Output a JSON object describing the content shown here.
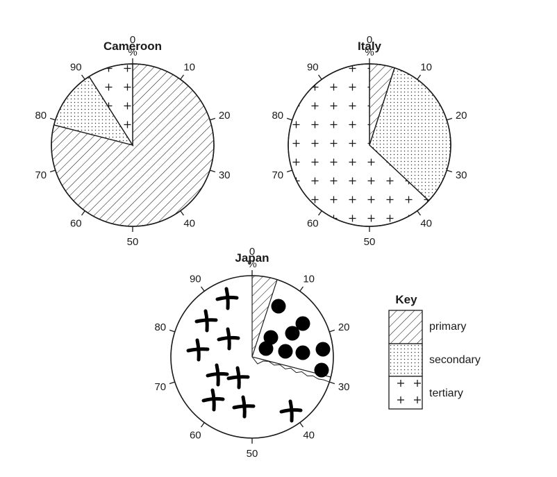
{
  "chart_data": [
    {
      "type": "pie",
      "title": "Cameroon",
      "unit": "%",
      "scale_ticks": [
        "0",
        "10",
        "20",
        "30",
        "40",
        "50",
        "60",
        "70",
        "80",
        "90"
      ],
      "categories": [
        "primary",
        "secondary",
        "tertiary"
      ],
      "values": [
        79,
        12,
        9
      ],
      "start": "top",
      "direction": "clockwise"
    },
    {
      "type": "pie",
      "title": "Italy",
      "unit": "%",
      "scale_ticks": [
        "0",
        "10",
        "20",
        "30",
        "40",
        "50",
        "60",
        "70",
        "80",
        "90"
      ],
      "categories": [
        "primary",
        "secondary",
        "tertiary"
      ],
      "values": [
        5,
        32,
        63
      ],
      "start": "top",
      "direction": "clockwise"
    },
    {
      "type": "pie",
      "title": "Japan",
      "unit": "%",
      "scale_ticks": [
        "0",
        "10",
        "20",
        "30",
        "40",
        "50",
        "60",
        "70",
        "80",
        "90"
      ],
      "categories": [
        "primary",
        "secondary",
        "tertiary"
      ],
      "values": [
        5,
        24,
        71
      ],
      "start": "top",
      "direction": "clockwise",
      "filled": [
        "primary"
      ],
      "hand_drawn": {
        "divider_end_percent": 30,
        "secondary_symbol": "filled-circle",
        "tertiary_symbol": "hand-drawn-cross"
      }
    }
  ],
  "key": {
    "title": "Key",
    "items": [
      {
        "label": "primary",
        "pattern": "diagonal-hatch"
      },
      {
        "label": "secondary",
        "pattern": "dots"
      },
      {
        "label": "tertiary",
        "pattern": "crosses"
      }
    ]
  }
}
